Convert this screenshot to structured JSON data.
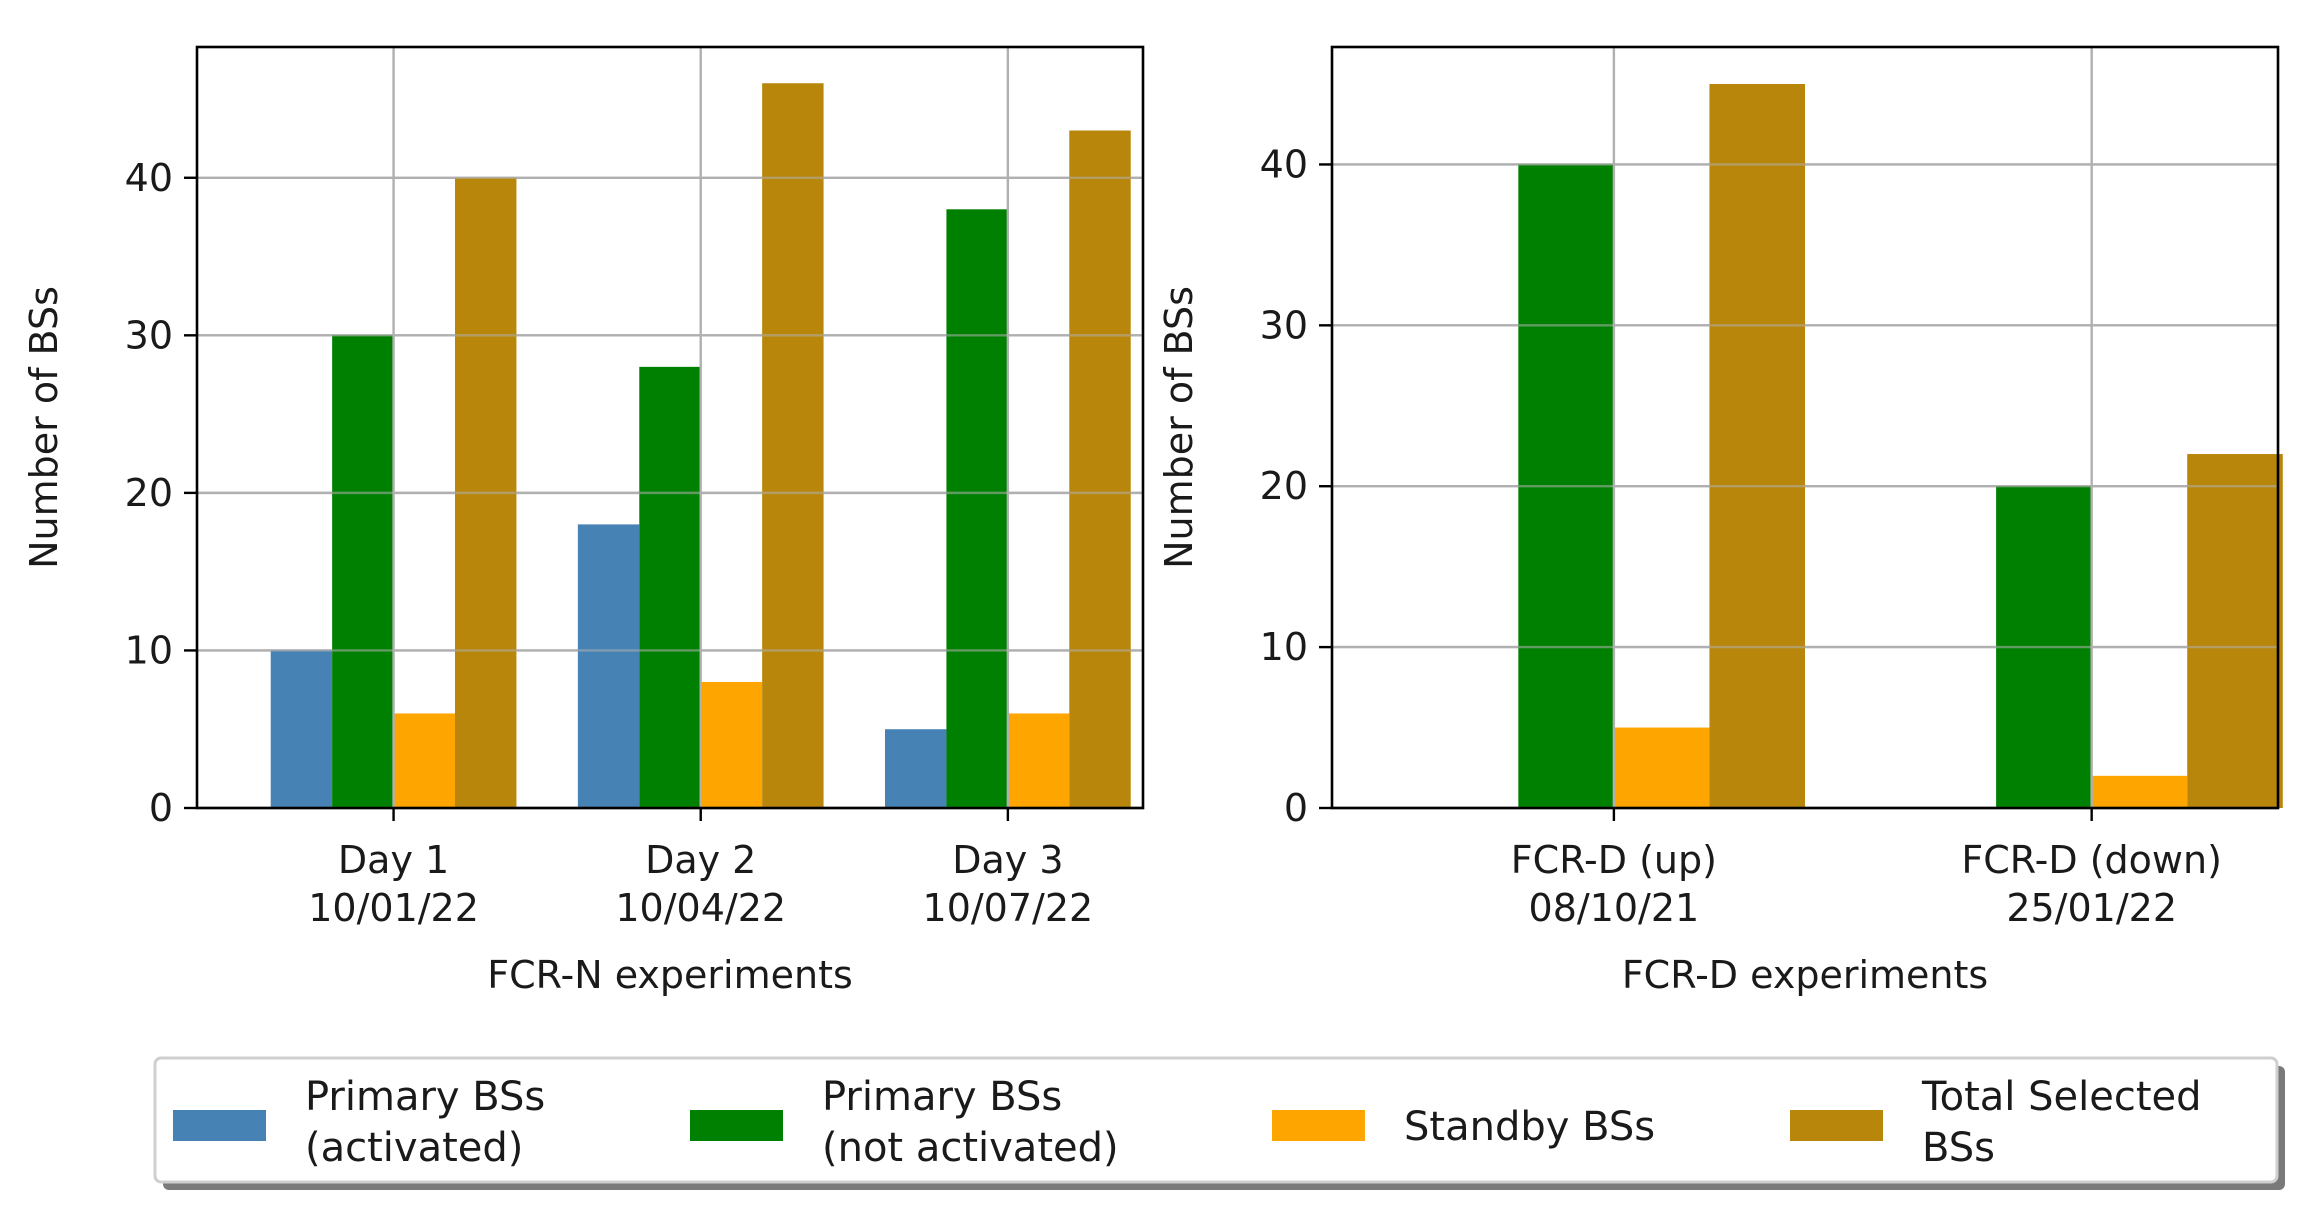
{
  "legend": {
    "placement": "bottom-center",
    "entries": [
      {
        "key": "primary_activated",
        "lines": [
          "Primary BSs",
          "(activated)"
        ],
        "color": "#4682b4"
      },
      {
        "key": "primary_not_activated",
        "lines": [
          "Primary BSs",
          "(not activated)"
        ],
        "color": "#008000"
      },
      {
        "key": "standby",
        "lines": [
          "Standby BSs"
        ],
        "color": "#ffa500"
      },
      {
        "key": "total_selected",
        "lines": [
          "Total Selected",
          "BSs"
        ],
        "color": "#b8860b"
      }
    ]
  },
  "chart_data": [
    {
      "type": "bar",
      "title": "",
      "xlabel": "FCR-N experiments",
      "ylabel": "Number of BSs",
      "ylim": [
        0,
        48.3
      ],
      "yticks": [
        0,
        10,
        20,
        30,
        40
      ],
      "grid": true,
      "categories": [
        [
          "Day 1",
          "10/01/22"
        ],
        [
          "Day 2",
          "10/04/22"
        ],
        [
          "Day 3",
          "10/07/22"
        ]
      ],
      "series": [
        {
          "name": "Primary BSs (activated)",
          "color": "#4682b4",
          "values": [
            10,
            18,
            5
          ]
        },
        {
          "name": "Primary BSs (not activated)",
          "color": "#008000",
          "values": [
            30,
            28,
            38
          ]
        },
        {
          "name": "Standby BSs",
          "color": "#ffa500",
          "values": [
            6,
            8,
            6
          ]
        },
        {
          "name": "Total Selected BSs",
          "color": "#b8860b",
          "values": [
            40,
            46,
            43
          ]
        }
      ]
    },
    {
      "type": "bar",
      "title": "",
      "xlabel": "FCR-D experiments",
      "ylabel": "Number of BSs",
      "ylim": [
        0,
        47.3
      ],
      "yticks": [
        0,
        10,
        20,
        30,
        40
      ],
      "grid": true,
      "categories": [
        [
          "FCR-D (up)",
          "08/10/21"
        ],
        [
          "FCR-D (down)",
          "25/01/22"
        ]
      ],
      "series": [
        {
          "name": "Primary BSs (activated)",
          "color": "#4682b4",
          "values": [
            0,
            0
          ]
        },
        {
          "name": "Primary BSs (not activated)",
          "color": "#008000",
          "values": [
            40,
            20
          ]
        },
        {
          "name": "Standby BSs",
          "color": "#ffa500",
          "values": [
            5,
            2
          ]
        },
        {
          "name": "Total Selected BSs",
          "color": "#b8860b",
          "values": [
            45,
            22
          ]
        }
      ]
    }
  ]
}
